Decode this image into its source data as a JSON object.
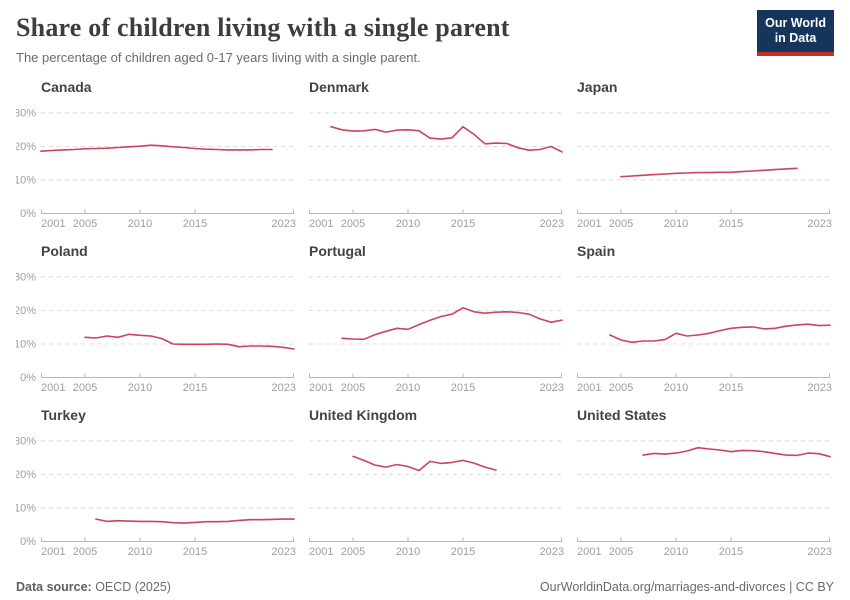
{
  "header": {
    "title": "Share of children living with a single parent",
    "subtitle": "The percentage of children aged 0-17 years living with a single parent.",
    "logo": {
      "line1": "Our World",
      "line2": "in Data",
      "bg": "#16355c",
      "bar": "#c5301f"
    }
  },
  "colors": {
    "line": "#cb445a",
    "gridline": "#dadada",
    "axis": "#b8b8b8",
    "tick_label": "#9e9e9e",
    "panel_title": "#434343"
  },
  "chart_data": {
    "type": "line",
    "title": "Share of children living with a single parent",
    "subtitle": "The percentage of children aged 0-17 years living with a single parent.",
    "x_domain": [
      2001,
      2024
    ],
    "x_ticks": [
      2001,
      2005,
      2010,
      2015,
      2023
    ],
    "y_gridlines": [
      10,
      20,
      30
    ],
    "y_tick_labels": [
      "0%",
      "10%",
      "20%",
      "30%"
    ],
    "ylim": [
      0,
      33
    ],
    "grid": "dashed-horizontal",
    "legend": "none",
    "panels": [
      {
        "name": "Canada",
        "y_labels": true,
        "series": [
          [
            2001,
            18.6
          ],
          [
            2002,
            18.8
          ],
          [
            2003,
            19.0
          ],
          [
            2004,
            19.1
          ],
          [
            2005,
            19.3
          ],
          [
            2006,
            19.4
          ],
          [
            2007,
            19.5
          ],
          [
            2008,
            19.7
          ],
          [
            2009,
            19.9
          ],
          [
            2010,
            20.1
          ],
          [
            2011,
            20.4
          ],
          [
            2012,
            20.2
          ],
          [
            2013,
            19.9
          ],
          [
            2014,
            19.7
          ],
          [
            2015,
            19.4
          ],
          [
            2016,
            19.2
          ],
          [
            2017,
            19.1
          ],
          [
            2018,
            19.0
          ],
          [
            2019,
            19.0
          ],
          [
            2020,
            19.0
          ],
          [
            2021,
            19.1
          ],
          [
            2022,
            19.1
          ]
        ]
      },
      {
        "name": "Denmark",
        "y_labels": false,
        "series": [
          [
            2003,
            25.9
          ],
          [
            2004,
            25.0
          ],
          [
            2005,
            24.6
          ],
          [
            2006,
            24.7
          ],
          [
            2007,
            25.1
          ],
          [
            2008,
            24.3
          ],
          [
            2009,
            24.9
          ],
          [
            2010,
            25.0
          ],
          [
            2011,
            24.7
          ],
          [
            2012,
            22.5
          ],
          [
            2013,
            22.2
          ],
          [
            2014,
            22.6
          ],
          [
            2015,
            25.9
          ],
          [
            2016,
            23.6
          ],
          [
            2017,
            20.8
          ],
          [
            2018,
            21.0
          ],
          [
            2019,
            20.9
          ],
          [
            2020,
            19.6
          ],
          [
            2021,
            18.9
          ],
          [
            2022,
            19.1
          ],
          [
            2023,
            20.0
          ],
          [
            2024,
            18.4
          ]
        ]
      },
      {
        "name": "Japan",
        "y_labels": false,
        "series": [
          [
            2005,
            11.0
          ],
          [
            2006,
            11.2
          ],
          [
            2007,
            11.4
          ],
          [
            2008,
            11.6
          ],
          [
            2009,
            11.8
          ],
          [
            2010,
            12.0
          ],
          [
            2011,
            12.1
          ],
          [
            2012,
            12.2
          ],
          [
            2013,
            12.2
          ],
          [
            2014,
            12.3
          ],
          [
            2015,
            12.3
          ],
          [
            2016,
            12.5
          ],
          [
            2017,
            12.7
          ],
          [
            2018,
            12.9
          ],
          [
            2019,
            13.1
          ],
          [
            2020,
            13.3
          ],
          [
            2021,
            13.5
          ]
        ]
      },
      {
        "name": "Poland",
        "y_labels": true,
        "series": [
          [
            2005,
            12.0
          ],
          [
            2006,
            11.8
          ],
          [
            2007,
            12.4
          ],
          [
            2008,
            12.0
          ],
          [
            2009,
            12.9
          ],
          [
            2010,
            12.6
          ],
          [
            2011,
            12.4
          ],
          [
            2012,
            11.6
          ],
          [
            2013,
            10.0
          ],
          [
            2014,
            9.9
          ],
          [
            2015,
            9.9
          ],
          [
            2016,
            9.9
          ],
          [
            2017,
            10.0
          ],
          [
            2018,
            9.9
          ],
          [
            2019,
            9.2
          ],
          [
            2020,
            9.4
          ],
          [
            2021,
            9.4
          ],
          [
            2022,
            9.3
          ],
          [
            2023,
            9.0
          ],
          [
            2024,
            8.5
          ]
        ]
      },
      {
        "name": "Portugal",
        "y_labels": false,
        "series": [
          [
            2004,
            11.7
          ],
          [
            2005,
            11.5
          ],
          [
            2006,
            11.4
          ],
          [
            2007,
            12.8
          ],
          [
            2008,
            13.8
          ],
          [
            2009,
            14.7
          ],
          [
            2010,
            14.4
          ],
          [
            2011,
            15.8
          ],
          [
            2012,
            17.1
          ],
          [
            2013,
            18.2
          ],
          [
            2014,
            18.9
          ],
          [
            2015,
            20.8
          ],
          [
            2016,
            19.6
          ],
          [
            2017,
            19.2
          ],
          [
            2018,
            19.5
          ],
          [
            2019,
            19.6
          ],
          [
            2020,
            19.4
          ],
          [
            2021,
            18.9
          ],
          [
            2022,
            17.5
          ],
          [
            2023,
            16.5
          ],
          [
            2024,
            17.1
          ]
        ]
      },
      {
        "name": "Spain",
        "y_labels": false,
        "series": [
          [
            2004,
            12.7
          ],
          [
            2005,
            11.2
          ],
          [
            2006,
            10.5
          ],
          [
            2007,
            10.9
          ],
          [
            2008,
            10.9
          ],
          [
            2009,
            11.3
          ],
          [
            2010,
            13.2
          ],
          [
            2011,
            12.4
          ],
          [
            2012,
            12.7
          ],
          [
            2013,
            13.2
          ],
          [
            2014,
            14.0
          ],
          [
            2015,
            14.7
          ],
          [
            2016,
            15.0
          ],
          [
            2017,
            15.1
          ],
          [
            2018,
            14.5
          ],
          [
            2019,
            14.7
          ],
          [
            2020,
            15.3
          ],
          [
            2021,
            15.7
          ],
          [
            2022,
            15.9
          ],
          [
            2023,
            15.5
          ],
          [
            2024,
            15.6
          ]
        ]
      },
      {
        "name": "Turkey",
        "y_labels": true,
        "series": [
          [
            2006,
            6.7
          ],
          [
            2007,
            6.0
          ],
          [
            2008,
            6.2
          ],
          [
            2009,
            6.1
          ],
          [
            2010,
            6.0
          ],
          [
            2011,
            6.0
          ],
          [
            2012,
            5.9
          ],
          [
            2013,
            5.6
          ],
          [
            2014,
            5.5
          ],
          [
            2015,
            5.7
          ],
          [
            2016,
            5.9
          ],
          [
            2017,
            5.9
          ],
          [
            2018,
            6.0
          ],
          [
            2019,
            6.3
          ],
          [
            2020,
            6.5
          ],
          [
            2021,
            6.5
          ],
          [
            2022,
            6.6
          ],
          [
            2023,
            6.7
          ],
          [
            2024,
            6.7
          ]
        ]
      },
      {
        "name": "United Kingdom",
        "y_labels": false,
        "series": [
          [
            2005,
            25.4
          ],
          [
            2006,
            24.2
          ],
          [
            2007,
            22.8
          ],
          [
            2008,
            22.2
          ],
          [
            2009,
            23.0
          ],
          [
            2010,
            22.4
          ],
          [
            2011,
            21.2
          ],
          [
            2012,
            23.9
          ],
          [
            2013,
            23.3
          ],
          [
            2014,
            23.6
          ],
          [
            2015,
            24.2
          ],
          [
            2016,
            23.4
          ],
          [
            2017,
            22.2
          ],
          [
            2018,
            21.3
          ]
        ]
      },
      {
        "name": "United States",
        "y_labels": false,
        "series": [
          [
            2007,
            25.8
          ],
          [
            2008,
            26.3
          ],
          [
            2009,
            26.1
          ],
          [
            2010,
            26.4
          ],
          [
            2011,
            27.0
          ],
          [
            2012,
            28.0
          ],
          [
            2013,
            27.6
          ],
          [
            2014,
            27.3
          ],
          [
            2015,
            26.8
          ],
          [
            2016,
            27.2
          ],
          [
            2017,
            27.1
          ],
          [
            2018,
            26.8
          ],
          [
            2019,
            26.3
          ],
          [
            2020,
            25.8
          ],
          [
            2021,
            25.7
          ],
          [
            2022,
            26.4
          ],
          [
            2023,
            26.2
          ],
          [
            2024,
            25.3
          ]
        ]
      }
    ]
  },
  "footer": {
    "source_label": "Data source:",
    "source_value": " OECD (2025)",
    "right": "OurWorldinData.org/marriages-and-divorces | CC BY"
  }
}
